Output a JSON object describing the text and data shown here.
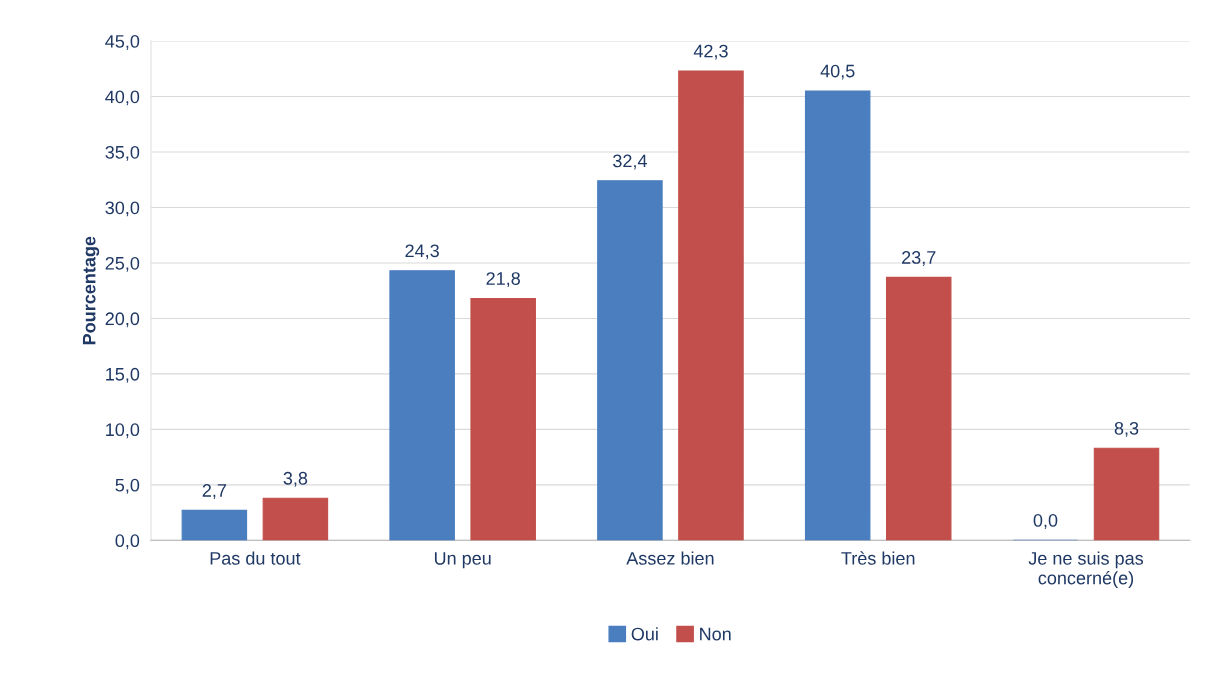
{
  "chart_data": {
    "type": "bar",
    "ylabel": "Pourcentage",
    "categories": [
      "Pas du tout",
      "Un peu",
      "Assez bien",
      "Très bien",
      "Je ne suis pas\nconcerné(e)"
    ],
    "series": [
      {
        "name": "Oui",
        "color": "#4a7ebf",
        "values": [
          2.7,
          24.3,
          32.4,
          40.5,
          0.0
        ],
        "value_labels": [
          "2,7",
          "24,3",
          "32,4",
          "40,5",
          "0,0"
        ]
      },
      {
        "name": "Non",
        "color": "#c24f4b",
        "values": [
          3.8,
          21.8,
          42.3,
          23.7,
          8.3
        ],
        "value_labels": [
          "3,8",
          "21,8",
          "42,3",
          "23,7",
          "8,3"
        ]
      }
    ],
    "ylim": [
      0,
      45
    ],
    "yticks": [
      {
        "value": 0,
        "label": "0,0"
      },
      {
        "value": 5,
        "label": "5,0"
      },
      {
        "value": 10,
        "label": "10,0"
      },
      {
        "value": 15,
        "label": "15,0"
      },
      {
        "value": 20,
        "label": "20,0"
      },
      {
        "value": 25,
        "label": "25,0"
      },
      {
        "value": 30,
        "label": "30,0"
      },
      {
        "value": 35,
        "label": "35,0"
      },
      {
        "value": 40,
        "label": "40,0"
      },
      {
        "value": 45,
        "label": "45,0"
      }
    ],
    "grid": "y",
    "legend": "bottom"
  }
}
